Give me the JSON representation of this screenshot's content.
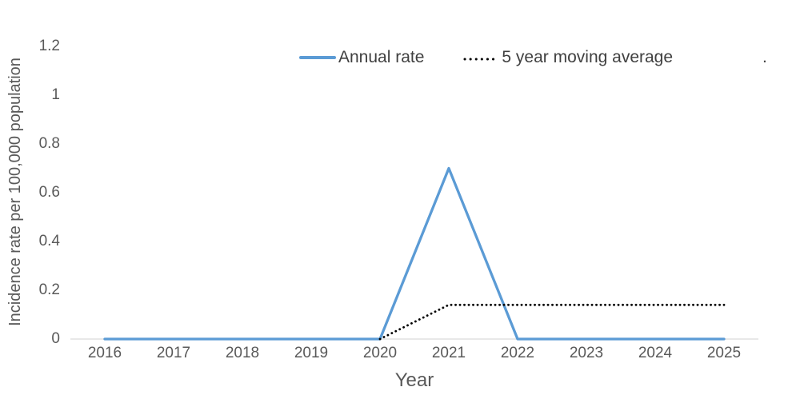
{
  "chart_data": {
    "type": "line",
    "title": "",
    "xlabel": "Year",
    "ylabel": "Incidence rate per 100,000 population",
    "categories": [
      "2016",
      "2017",
      "2018",
      "2019",
      "2020",
      "2021",
      "2022",
      "2023",
      "2024",
      "2025"
    ],
    "series": [
      {
        "name": "Annual rate",
        "style": "solid",
        "color": "#5B9BD5",
        "values": [
          0,
          0,
          0,
          0,
          0,
          0.7,
          0,
          0,
          0,
          0
        ]
      },
      {
        "name": "5 year moving average",
        "style": "dotted",
        "color": "#000000",
        "values": [
          null,
          null,
          null,
          null,
          0,
          0.14,
          0.14,
          0.14,
          0.14,
          0.14
        ]
      }
    ],
    "ylim": [
      0,
      1.2
    ],
    "yticks": [
      {
        "label": "0",
        "value": 0
      },
      {
        "label": "0.2",
        "value": 0.2
      },
      {
        "label": "0.4",
        "value": 0.4
      },
      {
        "label": "0.6",
        "value": 0.6
      },
      {
        "label": "0.8",
        "value": 0.8
      },
      {
        "label": "1",
        "value": 1
      },
      {
        "label": "1.2",
        "value": 1.2
      }
    ],
    "grid": false,
    "legend_position": "top",
    "legend_suffix": "."
  },
  "colors": {
    "background": "#FFFFFF",
    "axis_line": "#D9D9D9",
    "tick_label": "#595959",
    "axis_title": "#595959",
    "legend_text": "#404040"
  }
}
